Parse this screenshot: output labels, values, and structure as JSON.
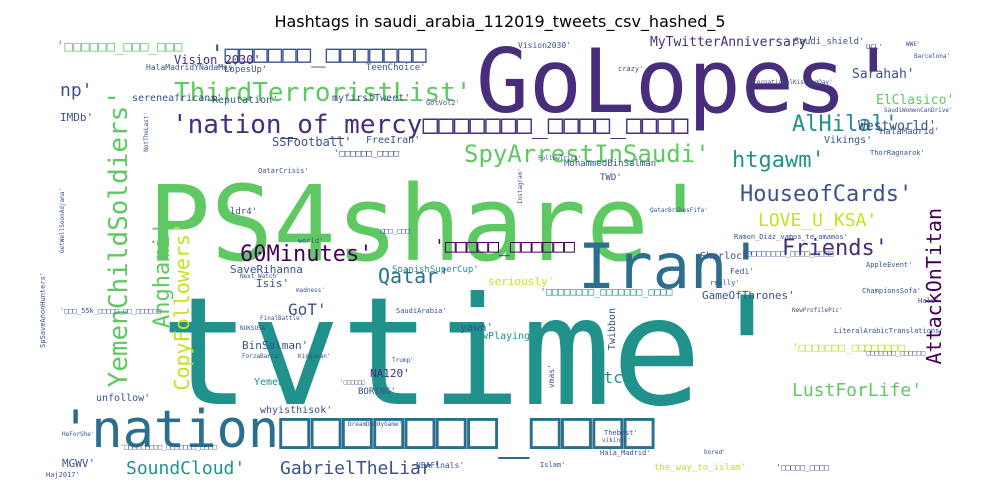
{
  "title": "Hashtags in saudi_arabia_112019_tweets_csv_hashed_5",
  "colors": {
    "dark_purple": "#472d7b",
    "blue": "#2c6e8e",
    "teal": "#21918c",
    "green": "#5ec962",
    "lime": "#c7e020",
    "navy": "#3b528b",
    "deep": "#440154"
  },
  "words": [
    {
      "text": "tvtime'"
    },
    {
      "text": "PS4share'"
    },
    {
      "text": "GoLopes'"
    },
    {
      "text": "'nation□□□□□□□_□□□□"
    },
    {
      "text": "Iran'"
    },
    {
      "text": "'nation_of_mercy□□□□□□□_□□□□_□□□□"
    },
    {
      "text": "YemenChildSoldiers'"
    },
    {
      "text": "ThirdTerroristList'"
    },
    {
      "text": "SpyArrestInSaudi'"
    },
    {
      "text": "'□□□□□□_□□□□□□□"
    },
    {
      "text": "60Minutes'"
    },
    {
      "text": "HouseofCards'"
    },
    {
      "text": "AlHilal'"
    },
    {
      "text": "htgawm'"
    },
    {
      "text": "Friends'"
    },
    {
      "text": "LOVE_U_KSA'"
    },
    {
      "text": "Qatar'"
    },
    {
      "text": "Anghami'"
    },
    {
      "text": "CopyFollowers'"
    },
    {
      "text": "AttackOnTitan"
    },
    {
      "text": "LustForLife'"
    },
    {
      "text": "SoundCloud'"
    },
    {
      "text": "GabrielTheLiar'"
    },
    {
      "text": "np'"
    },
    {
      "text": "'□□□□□_□□□□□□"
    },
    {
      "text": "btc'"
    },
    {
      "text": "GoT'"
    },
    {
      "text": "'□□□□□□_□□□_□□□"
    },
    {
      "text": "MyTwitterAnniversary'"
    },
    {
      "text": "Vision_2030'"
    },
    {
      "text": "Sarahah'"
    },
    {
      "text": "ElClasico'"
    },
    {
      "text": "Westworld'"
    },
    {
      "text": "SSFootball'"
    },
    {
      "text": "SaveRihanna"
    },
    {
      "text": "BinSalman'"
    },
    {
      "text": "NA120'"
    },
    {
      "text": "Isis'"
    },
    {
      "text": "seriously'"
    },
    {
      "text": "GameOfThrones'"
    },
    {
      "text": "yawn'"
    },
    {
      "text": "Yemen'"
    },
    {
      "text": "unfollow'"
    },
    {
      "text": "whyisthisok'"
    },
    {
      "text": "MGWV'"
    },
    {
      "text": "IMDb'"
    },
    {
      "text": "Reputation'"
    },
    {
      "text": "myfirstTweet'"
    },
    {
      "text": "sereneafricans'"
    },
    {
      "text": "FreeIran'"
    },
    {
      "text": "MohammedBinSalman'"
    },
    {
      "text": "TWD'"
    },
    {
      "text": "Sherlock'"
    },
    {
      "text": "NowPlaying'"
    },
    {
      "text": "SpanishSuperCup'"
    },
    {
      "text": "BORING'"
    },
    {
      "text": "Twibbon"
    },
    {
      "text": "'□□□□□□□_□□□□□□□□"
    },
    {
      "text": "'□□□□□□□□_□□□□□□□_□□□□"
    },
    {
      "text": "Vikings'"
    },
    {
      "text": "HalaMadrid'"
    },
    {
      "text": "LopesUp'"
    },
    {
      "text": "TeenChoice'"
    },
    {
      "text": "Vision2030'"
    },
    {
      "text": "Saudi_shield'"
    },
    {
      "text": "HalaMadridYNadaMas'"
    },
    {
      "text": "ldr4'"
    },
    {
      "text": "QatarCrisis'"
    },
    {
      "text": "Hala_Madrid'"
    },
    {
      "text": "the_way_to_islam'"
    },
    {
      "text": "NBAFinals'"
    },
    {
      "text": "vmas'"
    },
    {
      "text": "Haj2017'"
    },
    {
      "text": "Fedi'"
    },
    {
      "text": "AppleEvent'"
    },
    {
      "text": "ChampionsSofa'"
    },
    {
      "text": "LiteralArabicTranslations'"
    },
    {
      "text": "ThorRagnarok'"
    },
    {
      "text": "Ramon_Diaz_vamos_te_amamos'"
    },
    {
      "text": "world'"
    },
    {
      "text": "crazy'"
    },
    {
      "text": "SaudiArabia'"
    },
    {
      "text": "Next_Watch'"
    },
    {
      "text": "GotVol2'"
    },
    {
      "text": "DreamDaddyGame'"
    },
    {
      "text": "FollowTrick'"
    },
    {
      "text": "Islam'"
    },
    {
      "text": "ForzaBarca'"
    },
    {
      "text": "Trump'"
    },
    {
      "text": "'□□□□□□_□□□□"
    },
    {
      "text": "'□□□□□□□□_□□□□_□□□□"
    },
    {
      "text": "'□□□_55k_□□□□□_□□_□□□□□□"
    },
    {
      "text": "SpSaveAnonHunters'"
    },
    {
      "text": "'□□□□□□□_□□□□□□"
    },
    {
      "text": "'□□□□□□□□□_□□□□□□□_□□□□"
    },
    {
      "text": "really'"
    },
    {
      "text": "Hala'"
    },
    {
      "text": "GetWellSoonAdjama'"
    },
    {
      "text": "SaudiWomenCanDrive'"
    },
    {
      "text": "InternationalKissingDay'"
    },
    {
      "text": "NewProfilePic'"
    },
    {
      "text": "madness'"
    },
    {
      "text": "QatarBribesFifa'"
    },
    {
      "text": "Instagram'"
    },
    {
      "text": "NotTheLast'"
    },
    {
      "text": "Thebest'"
    },
    {
      "text": "vikings'"
    },
    {
      "text": "'□□□□□□"
    },
    {
      "text": "UCL'"
    },
    {
      "text": "WWE'"
    },
    {
      "text": "Barcelona'"
    },
    {
      "text": "bored'"
    },
    {
      "text": "HeForShe'"
    },
    {
      "text": "Kingsman'"
    },
    {
      "text": "'□□□_□□□"
    },
    {
      "text": "'□□□□□_□□□□"
    },
    {
      "text": "NUKSUSA'"
    },
    {
      "text": "FinalBattle'"
    }
  ]
}
